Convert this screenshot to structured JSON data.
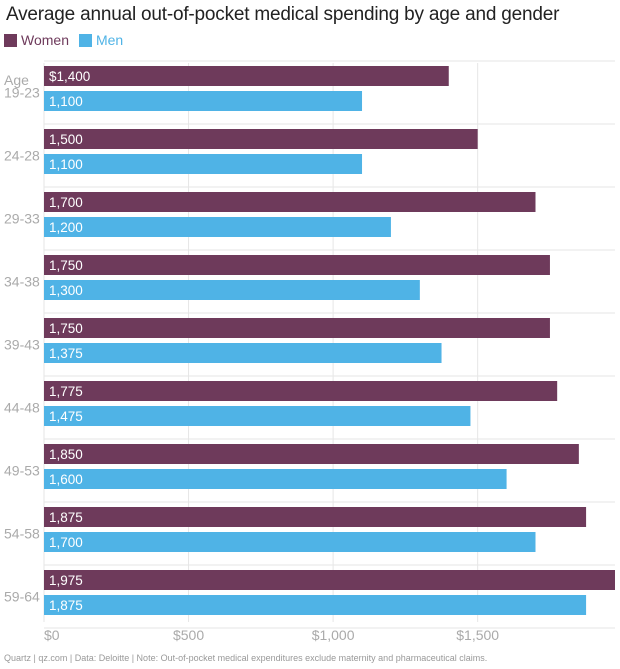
{
  "colors": {
    "women": "#6e3a5b",
    "men": "#4fb3e6",
    "grid": "#e6e6e6",
    "axis_text": "#aaaaaa",
    "bar_label": "#ffffff"
  },
  "footer": "Quartz | qz.com | Data: Deloitte | Note: Out-of-pocket medical expenditures exclude maternity and pharmaceutical claims.",
  "chart_data": {
    "type": "bar",
    "orientation": "horizontal",
    "title": "Average annual out-of-pocket medical spending by age and gender",
    "ylabel": "Age",
    "categories": [
      "19-23",
      "24-28",
      "29-33",
      "34-38",
      "39-43",
      "44-48",
      "49-53",
      "54-58",
      "59-64"
    ],
    "series": [
      {
        "name": "Women",
        "values": [
          1400,
          1500,
          1700,
          1750,
          1750,
          1775,
          1850,
          1875,
          1975
        ],
        "labels": [
          "$1,400",
          "1,500",
          "1,700",
          "1,750",
          "1,750",
          "1,775",
          "1,850",
          "1,875",
          "1,975"
        ]
      },
      {
        "name": "Men",
        "values": [
          1100,
          1100,
          1200,
          1300,
          1375,
          1475,
          1600,
          1700,
          1875
        ],
        "labels": [
          "1,100",
          "1,100",
          "1,200",
          "1,300",
          "1,375",
          "1,475",
          "1,600",
          "1,700",
          "1,875"
        ]
      }
    ],
    "xlim": [
      0,
      1975
    ],
    "xticks": [
      0,
      500,
      1000,
      1500
    ],
    "xtick_labels": [
      "$0",
      "$500",
      "$1,000",
      "$1,500"
    ],
    "grid": true,
    "legend_position": "top-left"
  }
}
